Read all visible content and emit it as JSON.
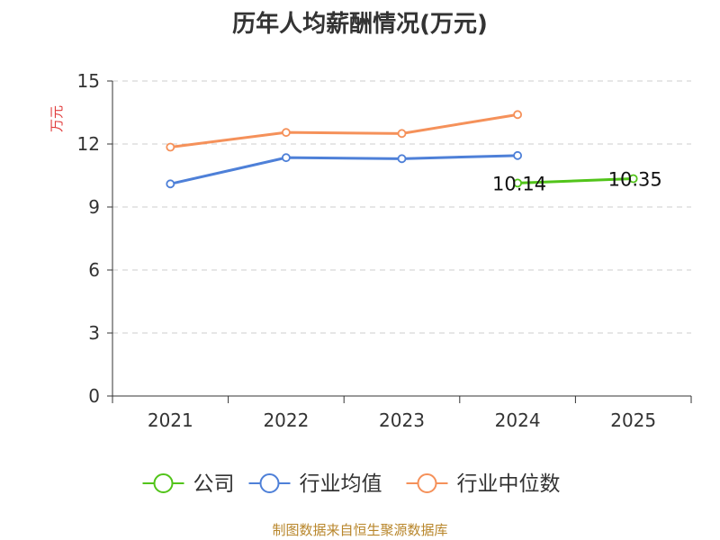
{
  "chart_data": {
    "type": "line",
    "title": "历年人均薪酬情况(万元)",
    "ylabel": "万元",
    "xlabel": "",
    "categories": [
      "2021",
      "2022",
      "2023",
      "2024",
      "2025"
    ],
    "ylim": [
      0,
      15
    ],
    "yticks": [
      0,
      3,
      6,
      9,
      12,
      15
    ],
    "grid": true,
    "legend_position": "bottom",
    "series": [
      {
        "name": "公司",
        "color": "#52c41a",
        "values": [
          null,
          null,
          null,
          10.14,
          10.35
        ],
        "labels": [
          "",
          "",
          "",
          "10.14",
          "10.35"
        ]
      },
      {
        "name": "行业均值",
        "color": "#4e80d8",
        "values": [
          10.1,
          11.35,
          11.3,
          11.45,
          null
        ],
        "labels": [
          "",
          "",
          "",
          "",
          ""
        ]
      },
      {
        "name": "行业中位数",
        "color": "#f5915a",
        "values": [
          11.85,
          12.55,
          12.5,
          13.4,
          null
        ],
        "labels": [
          "",
          "",
          "",
          "",
          ""
        ]
      }
    ],
    "ylabel_color": "#e03c3c"
  },
  "footer": {
    "source": "制图数据来自恒生聚源数据库"
  }
}
